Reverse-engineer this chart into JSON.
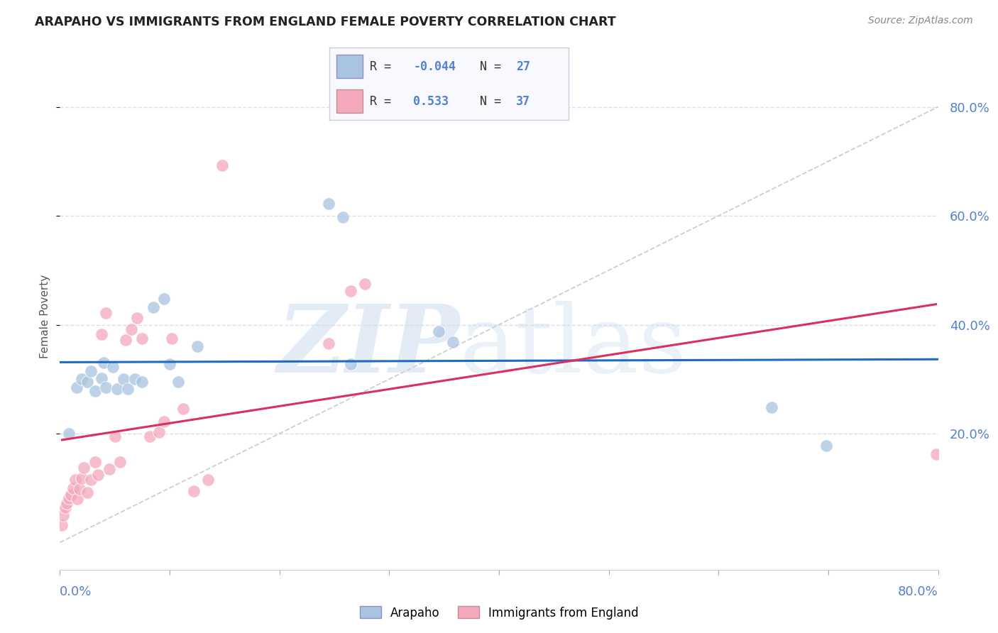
{
  "title": "ARAPAHO VS IMMIGRANTS FROM ENGLAND FEMALE POVERTY CORRELATION CHART",
  "source": "Source: ZipAtlas.com",
  "ylabel": "Female Poverty",
  "arapaho_R": -0.044,
  "arapaho_N": 27,
  "england_R": 0.533,
  "england_N": 37,
  "arapaho_color": "#a8c4e0",
  "england_color": "#f4a8bc",
  "arapaho_line_color": "#1e6bbf",
  "england_line_color": "#d93060",
  "arapaho_x": [
    0.008,
    0.015,
    0.02,
    0.025,
    0.028,
    0.032,
    0.038,
    0.04,
    0.042,
    0.048,
    0.052,
    0.058,
    0.062,
    0.068,
    0.075,
    0.085,
    0.095,
    0.1,
    0.108,
    0.125,
    0.245,
    0.258,
    0.265,
    0.345,
    0.358,
    0.648,
    0.698
  ],
  "arapaho_y": [
    0.2,
    0.285,
    0.3,
    0.295,
    0.315,
    0.278,
    0.302,
    0.33,
    0.285,
    0.322,
    0.282,
    0.3,
    0.282,
    0.3,
    0.295,
    0.432,
    0.448,
    0.328,
    0.295,
    0.36,
    0.622,
    0.598,
    0.328,
    0.388,
    0.368,
    0.248,
    0.178
  ],
  "england_x": [
    0.002,
    0.003,
    0.005,
    0.006,
    0.008,
    0.01,
    0.012,
    0.014,
    0.016,
    0.018,
    0.02,
    0.022,
    0.025,
    0.028,
    0.032,
    0.035,
    0.038,
    0.042,
    0.045,
    0.05,
    0.055,
    0.06,
    0.065,
    0.07,
    0.075,
    0.082,
    0.09,
    0.095,
    0.102,
    0.112,
    0.122,
    0.135,
    0.148,
    0.245,
    0.265,
    0.278,
    0.798
  ],
  "england_y": [
    0.032,
    0.05,
    0.065,
    0.072,
    0.082,
    0.088,
    0.1,
    0.115,
    0.08,
    0.098,
    0.118,
    0.138,
    0.092,
    0.115,
    0.148,
    0.125,
    0.382,
    0.422,
    0.135,
    0.195,
    0.148,
    0.372,
    0.392,
    0.412,
    0.375,
    0.195,
    0.202,
    0.222,
    0.375,
    0.245,
    0.095,
    0.115,
    0.692,
    0.365,
    0.462,
    0.475,
    0.162
  ],
  "xlim": [
    0.0,
    0.8
  ],
  "ylim": [
    -0.05,
    0.88
  ],
  "right_yticks": [
    0.2,
    0.4,
    0.6,
    0.8
  ],
  "grid_color": "#ddddee",
  "bg_color": "#ffffff",
  "title_color": "#222222",
  "source_color": "#888888",
  "tick_color": "#5580cc",
  "legend_bg": "#f8f8ff",
  "legend_border": "#ccccdd"
}
